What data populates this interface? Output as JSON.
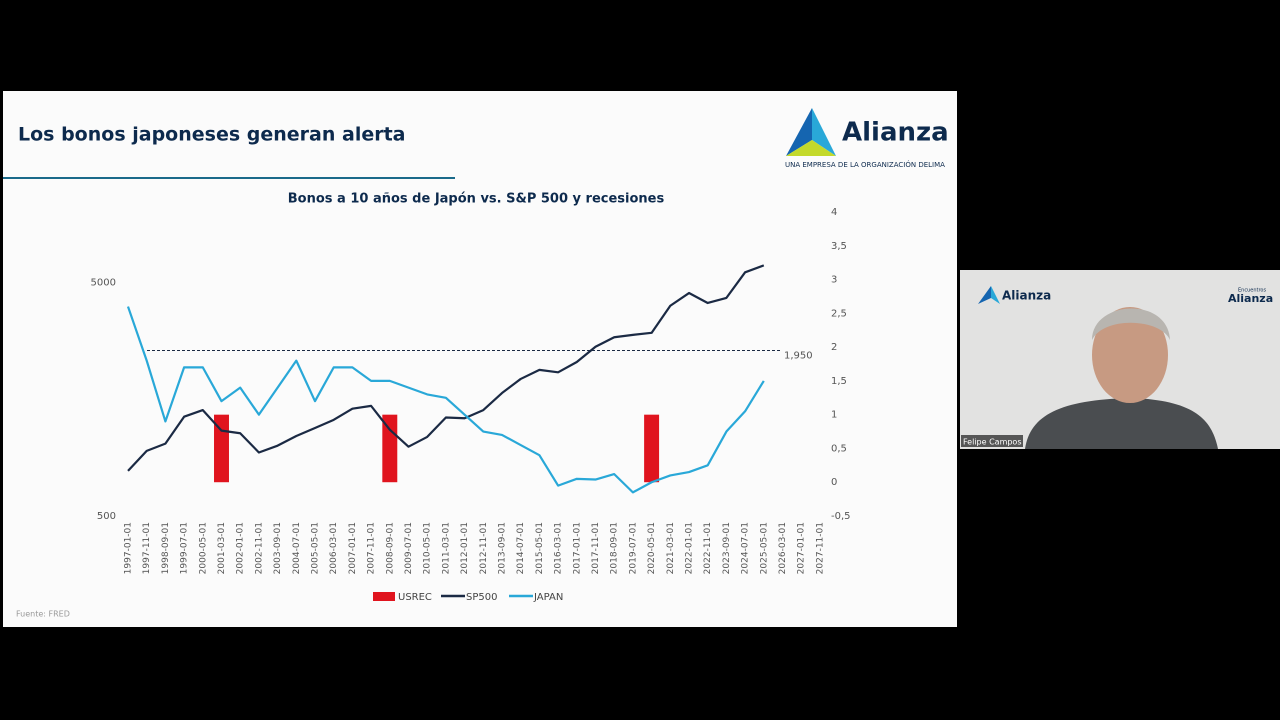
{
  "slide": {
    "title": "Los bonos japoneses generan alerta",
    "logo": "Alianza",
    "tagline": "UNA EMPRESA DE LA ORGANIZACIÓN DELIMA",
    "source": "Fuente: FRED"
  },
  "chart_data": {
    "type": "line",
    "title": "Bonos a 10 años de Japón vs. S&P 500 y recesiones",
    "categories": [
      "1997-01-01",
      "1997-11-01",
      "1998-09-01",
      "1999-07-01",
      "2000-05-01",
      "2001-03-01",
      "2002-01-01",
      "2002-11-01",
      "2003-09-01",
      "2004-07-01",
      "2005-05-01",
      "2006-03-01",
      "2007-01-01",
      "2007-11-01",
      "2008-09-01",
      "2009-07-01",
      "2010-05-01",
      "2011-03-01",
      "2012-01-01",
      "2012-11-01",
      "2013-09-01",
      "2014-07-01",
      "2015-05-01",
      "2016-03-01",
      "2017-01-01",
      "2017-11-01",
      "2018-09-01",
      "2019-07-01",
      "2020-05-01",
      "2021-03-01",
      "2022-01-01",
      "2022-11-01",
      "2023-09-01",
      "2024-07-01",
      "2025-05-01",
      "2026-03-01",
      "2027-01-01",
      "2027-11-01"
    ],
    "series": [
      {
        "name": "USREC",
        "type": "bar",
        "axis": "y2",
        "color": "#e0141e",
        "values": [
          0,
          0,
          0,
          0,
          0,
          1,
          0,
          0,
          0,
          0,
          0,
          0,
          0,
          0,
          1,
          0,
          0,
          0,
          0,
          0,
          0,
          0,
          0,
          0,
          0,
          0,
          0,
          0,
          1,
          0,
          0,
          0,
          0,
          0,
          0,
          null,
          null,
          null
        ]
      },
      {
        "name": "SP500",
        "type": "line",
        "color": "#1b2a44",
        "values": [
          780,
          950,
          1020,
          1330,
          1420,
          1160,
          1130,
          935,
          1000,
          1100,
          1190,
          1290,
          1440,
          1480,
          1170,
          990,
          1090,
          1320,
          1310,
          1420,
          1680,
          1930,
          2110,
          2060,
          2280,
          2650,
          2910,
          2980,
          3040,
          3970,
          4500,
          4080,
          4290,
          5520,
          5910,
          null,
          null,
          null
        ]
      },
      {
        "name": "JAPAN",
        "type": "line",
        "axis": "y2",
        "color": "#29a8d8",
        "values": [
          2.6,
          1.8,
          0.9,
          1.7,
          1.7,
          1.2,
          1.4,
          1.0,
          1.4,
          1.8,
          1.2,
          1.7,
          1.7,
          1.5,
          1.5,
          1.4,
          1.3,
          1.25,
          1.0,
          0.75,
          0.7,
          0.55,
          0.4,
          -0.05,
          0.05,
          0.04,
          0.12,
          -0.15,
          0.0,
          0.1,
          0.15,
          0.25,
          0.75,
          1.05,
          1.5,
          null,
          null,
          null
        ]
      }
    ],
    "ylim": [
      500,
      10000
    ],
    "yticks": [
      500,
      5000
    ],
    "log_scale": true,
    "y2lim": [
      -0.5,
      4
    ],
    "y2ticks": [
      4,
      {
        "value": 3.5,
        "label": "3,5"
      },
      3,
      {
        "value": 2.5,
        "label": "2,5"
      },
      2,
      {
        "value": 1.5,
        "label": "1,5"
      },
      1,
      {
        "value": 0.5,
        "label": "0,5"
      },
      0,
      {
        "value": -0.5,
        "label": "-0,5"
      }
    ],
    "reference_line": {
      "value": 1.95,
      "label": "1,950"
    },
    "grid": false,
    "legend": "bottom"
  },
  "webcam": {
    "logo": "Alianza",
    "badge_top": "Encuentros",
    "badge_name": "Alianza",
    "participant": "Felipe Campos"
  }
}
